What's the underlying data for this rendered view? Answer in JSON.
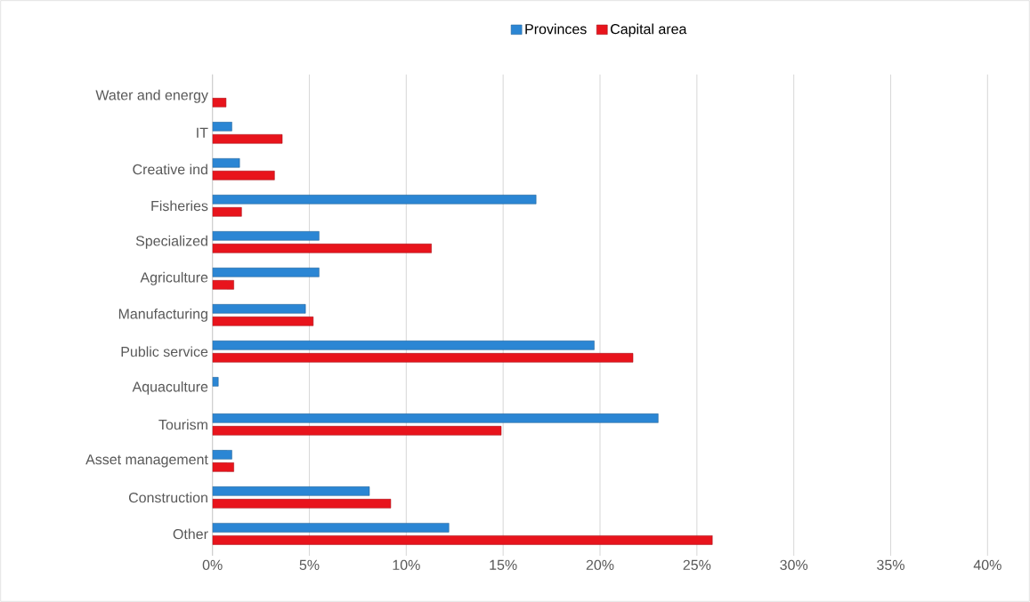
{
  "chart_data": {
    "type": "bar",
    "orientation": "horizontal",
    "categories": [
      "Water and energy",
      "IT",
      "Creative ind",
      "Fisheries",
      "Specialized",
      "Agriculture",
      "Manufacturing",
      "Public service",
      "Aquaculture",
      "Tourism",
      "Asset management",
      "Construction",
      "Other"
    ],
    "series": [
      {
        "name": "Provinces",
        "color": "#2b86d4",
        "values": [
          null,
          1.0,
          1.4,
          16.7,
          5.5,
          5.5,
          4.8,
          19.7,
          0.3,
          23.0,
          1.0,
          8.1,
          12.2
        ]
      },
      {
        "name": "Capital area",
        "color": "#e8141c",
        "values": [
          0.7,
          3.6,
          3.2,
          1.5,
          11.3,
          1.1,
          5.2,
          21.7,
          null,
          14.9,
          1.1,
          9.2,
          25.8
        ]
      }
    ],
    "xlim": [
      0,
      40
    ],
    "xticks": [
      {
        "value": 0,
        "label": "0%"
      },
      {
        "value": 5,
        "label": "5%"
      },
      {
        "value": 10,
        "label": "10%"
      },
      {
        "value": 15,
        "label": "15%"
      },
      {
        "value": 20,
        "label": "20%"
      },
      {
        "value": 25,
        "label": "25%"
      },
      {
        "value": 30,
        "label": "30%"
      },
      {
        "value": 35,
        "label": "35%"
      },
      {
        "value": 40,
        "label": "40%"
      }
    ],
    "grid": "x",
    "legend": "top"
  }
}
